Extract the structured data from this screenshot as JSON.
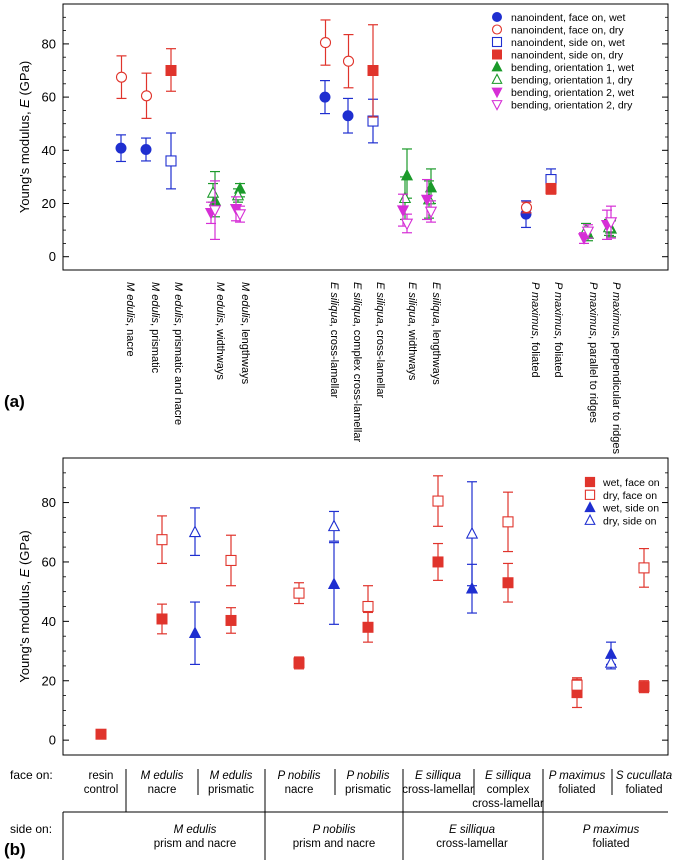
{
  "chart_data": [
    {
      "panel": "(a)",
      "type": "scatter",
      "ylabel": "Young's modulus, E (GPa)",
      "ylim": [
        -5,
        95
      ],
      "yticks": [
        0,
        20,
        40,
        60,
        80
      ],
      "grid": false,
      "legend_placement": "top-right",
      "categories": [
        {
          "genus": "M edulis",
          "rest": ", nacre"
        },
        {
          "genus": "M edulis",
          "rest": ", prismatic"
        },
        {
          "genus": "M edulis",
          "rest": ", prismatic and nacre"
        },
        {
          "genus": "M edulis",
          "rest": ", widthways"
        },
        {
          "genus": "M edulis",
          "rest": ", lengthways"
        },
        {
          "genus": "E siliqua",
          "rest": ", cross-lamellar"
        },
        {
          "genus": "E siliqua",
          "rest": ", complex cross-lamellar"
        },
        {
          "genus": "E siliqua",
          "rest": ", cross-lamellar"
        },
        {
          "genus": "E siliqua",
          "rest": ", widthways"
        },
        {
          "genus": "E siliqua",
          "rest": ", lengthways"
        },
        {
          "genus": "P maximus",
          "rest": ", foliated"
        },
        {
          "genus": "P maximus",
          "rest": ", foliated"
        },
        {
          "genus": "P maximus",
          "rest": ", parallel to ridges"
        },
        {
          "genus": "P maximus",
          "rest": ", perpendicular to ridges"
        }
      ],
      "series": [
        {
          "name": "nanoindent, face on, wet",
          "marker": "circle",
          "filled": true,
          "color": "#1f2fd0",
          "points": [
            {
              "cat": 0,
              "y": 40.8,
              "lo": 35.8,
              "hi": 45.8
            },
            {
              "cat": 1,
              "y": 40.3,
              "lo": 36.0,
              "hi": 44.6
            },
            {
              "cat": 5,
              "y": 60.0,
              "lo": 53.8,
              "hi": 66.2
            },
            {
              "cat": 6,
              "y": 53.0,
              "lo": 46.5,
              "hi": 59.5
            },
            {
              "cat": 10,
              "y": 16.0,
              "lo": 11.0,
              "hi": 21.0
            }
          ]
        },
        {
          "name": "nanoindent, face on, dry",
          "marker": "circle",
          "filled": false,
          "color": "#e0342c",
          "points": [
            {
              "cat": 0,
              "y": 67.5,
              "lo": 59.5,
              "hi": 75.5
            },
            {
              "cat": 1,
              "y": 60.5,
              "lo": 52.0,
              "hi": 69.0
            },
            {
              "cat": 5,
              "y": 80.5,
              "lo": 72.0,
              "hi": 89.0
            },
            {
              "cat": 6,
              "y": 73.5,
              "lo": 63.5,
              "hi": 83.5
            },
            {
              "cat": 10,
              "y": 18.5,
              "lo": 16.5,
              "hi": 20.5
            }
          ]
        },
        {
          "name": "nanoindent, side on, wet",
          "marker": "square",
          "filled": false,
          "color": "#1f2fd0",
          "points": [
            {
              "cat": 2,
              "y": 36.0,
              "lo": 25.5,
              "hi": 46.5
            },
            {
              "cat": 7,
              "y": 51.0,
              "lo": 42.8,
              "hi": 59.2
            },
            {
              "cat": 11,
              "y": 29.0,
              "lo": 25.5,
              "hi": 33.0
            }
          ]
        },
        {
          "name": "nanoindent, side on, dry",
          "marker": "square",
          "filled": true,
          "color": "#e0342c",
          "points": [
            {
              "cat": 2,
              "y": 70.0,
              "lo": 62.2,
              "hi": 78.2
            },
            {
              "cat": 7,
              "y": 70.0,
              "lo": 52.5,
              "hi": 87.2
            },
            {
              "cat": 11,
              "y": 25.5,
              "lo": 23.5,
              "hi": 27.5
            }
          ]
        },
        {
          "name": "bending, orientation 1, wet",
          "marker": "triangle-up",
          "filled": true,
          "color": "#1b9a2a",
          "points": [
            {
              "cat": 3,
              "y": 21.0,
              "lo": 15.0,
              "hi": 32.0
            },
            {
              "cat": 4,
              "y": 25.5,
              "lo": 22.5,
              "hi": 27.5
            },
            {
              "cat": 8,
              "y": 30.5,
              "lo": 22.0,
              "hi": 40.5
            },
            {
              "cat": 9,
              "y": 26.0,
              "lo": 20.0,
              "hi": 33.0
            },
            {
              "cat": 12,
              "y": 8.5,
              "lo": 6.0,
              "hi": 11.0
            },
            {
              "cat": 13,
              "y": 10.5,
              "lo": 7.5,
              "hi": 13.5
            }
          ]
        },
        {
          "name": "bending, orientation 1, dry",
          "marker": "triangle-up",
          "filled": false,
          "color": "#1b9a2a",
          "points": [
            {
              "cat": 3,
              "y": 24.0,
              "lo": 20.5,
              "hi": 27.5
            },
            {
              "cat": 4,
              "y": 23.0,
              "lo": 20.5,
              "hi": 25.5
            },
            {
              "cat": 8,
              "y": 22.0,
              "lo": 14.0,
              "hi": 30.0
            },
            {
              "cat": 9,
              "y": 21.5,
              "lo": 14.5,
              "hi": 28.5
            },
            {
              "cat": 12,
              "y": 10.0,
              "lo": 7.5,
              "hi": 12.5
            },
            {
              "cat": 13,
              "y": 11.0,
              "lo": 8.0,
              "hi": 14.0
            }
          ]
        },
        {
          "name": "bending, orientation 2, wet",
          "marker": "triangle-down",
          "filled": true,
          "color": "#d62fd6",
          "points": [
            {
              "cat": 3,
              "y": 16.5,
              "lo": 12.5,
              "hi": 20.5
            },
            {
              "cat": 4,
              "y": 18.0,
              "lo": 13.5,
              "hi": 22.5
            },
            {
              "cat": 8,
              "y": 17.5,
              "lo": 11.5,
              "hi": 23.5
            },
            {
              "cat": 9,
              "y": 21.5,
              "lo": 14.0,
              "hi": 29.0
            },
            {
              "cat": 12,
              "y": 7.0,
              "lo": 5.0,
              "hi": 9.0
            },
            {
              "cat": 13,
              "y": 12.0,
              "lo": 6.5,
              "hi": 17.5
            }
          ]
        },
        {
          "name": "bending, orientation 2, dry",
          "marker": "triangle-down",
          "filled": false,
          "color": "#d62fd6",
          "points": [
            {
              "cat": 3,
              "y": 17.5,
              "lo": 6.5,
              "hi": 28.5
            },
            {
              "cat": 4,
              "y": 16.0,
              "lo": 13.0,
              "hi": 19.0
            },
            {
              "cat": 8,
              "y": 12.5,
              "lo": 9.0,
              "hi": 16.0
            },
            {
              "cat": 9,
              "y": 17.0,
              "lo": 13.0,
              "hi": 21.0
            },
            {
              "cat": 12,
              "y": 9.5,
              "lo": 7.0,
              "hi": 12.0
            },
            {
              "cat": 13,
              "y": 13.0,
              "lo": 7.0,
              "hi": 19.0
            }
          ]
        }
      ]
    },
    {
      "panel": "(b)",
      "type": "scatter",
      "ylabel": "Young's modulus, E (GPa)",
      "ylim": [
        -5,
        95
      ],
      "yticks": [
        0,
        20,
        40,
        60,
        80
      ],
      "grid": false,
      "legend_placement": "top-right",
      "row_labels": {
        "face_on": "face on:",
        "side_on": "side on:"
      },
      "face_on_categories": [
        {
          "top": "resin",
          "bottom": "control",
          "italic_top": false
        },
        {
          "top": "M edulis",
          "bottom": "nacre",
          "italic_top": true
        },
        {
          "top": "M edulis",
          "bottom": "prismatic",
          "italic_top": true
        },
        {
          "top": "P nobilis",
          "bottom": "nacre",
          "italic_top": true
        },
        {
          "top": "P nobilis",
          "bottom": "prismatic",
          "italic_top": true
        },
        {
          "top": "E silliqua",
          "bottom": "cross-lamellar",
          "italic_top": true
        },
        {
          "top": "E silliqua",
          "bottom": "complex",
          "extra": "cross-lamellar",
          "italic_top": true
        },
        {
          "top": "P maximus",
          "bottom": "foliated",
          "italic_top": true
        },
        {
          "top": "S cucullata",
          "bottom": "foliated",
          "italic_top": true
        }
      ],
      "side_on_categories": [
        {
          "top": "M edulis",
          "bottom": "prism and nacre"
        },
        {
          "top": "P nobilis",
          "bottom": "prism and nacre"
        },
        {
          "top": "E silliqua",
          "bottom": "cross-lamellar"
        },
        {
          "top": "P maximus",
          "bottom": "foliated"
        }
      ],
      "series": [
        {
          "name": "wet, face on",
          "marker": "square",
          "filled": true,
          "color": "#e0342c",
          "points": [
            {
              "slot": "f0",
              "y": 2.0,
              "lo": 2.0,
              "hi": 2.0
            },
            {
              "slot": "f1",
              "y": 40.8,
              "lo": 35.8,
              "hi": 45.8
            },
            {
              "slot": "f2",
              "y": 40.3,
              "lo": 36.0,
              "hi": 44.6
            },
            {
              "slot": "f3",
              "y": 26.0,
              "lo": 24.0,
              "hi": 28.0
            },
            {
              "slot": "f4",
              "y": 38.0,
              "lo": 33.0,
              "hi": 43.0
            },
            {
              "slot": "f5",
              "y": 60.0,
              "lo": 53.8,
              "hi": 66.2
            },
            {
              "slot": "f6",
              "y": 53.0,
              "lo": 46.5,
              "hi": 59.5
            },
            {
              "slot": "f7",
              "y": 16.0,
              "lo": 11.0,
              "hi": 21.0
            },
            {
              "slot": "f8",
              "y": 18.0,
              "lo": 16.0,
              "hi": 20.0
            }
          ]
        },
        {
          "name": "dry, face on",
          "marker": "square",
          "filled": false,
          "color": "#e0342c",
          "points": [
            {
              "slot": "f1",
              "y": 67.5,
              "lo": 59.5,
              "hi": 75.5
            },
            {
              "slot": "f2",
              "y": 60.5,
              "lo": 52.0,
              "hi": 69.0
            },
            {
              "slot": "f3",
              "y": 49.5,
              "lo": 46.0,
              "hi": 53.0
            },
            {
              "slot": "f4",
              "y": 45.0,
              "lo": 38.0,
              "hi": 52.0
            },
            {
              "slot": "f5",
              "y": 80.5,
              "lo": 72.0,
              "hi": 89.0
            },
            {
              "slot": "f6",
              "y": 73.5,
              "lo": 63.5,
              "hi": 83.5
            },
            {
              "slot": "f7",
              "y": 18.5,
              "lo": 16.5,
              "hi": 20.5
            },
            {
              "slot": "f8",
              "y": 58.0,
              "lo": 51.5,
              "hi": 64.5
            }
          ]
        },
        {
          "name": "wet, side on",
          "marker": "triangle-up",
          "filled": true,
          "color": "#1f2fd0",
          "points": [
            {
              "slot": "s0",
              "y": 36.0,
              "lo": 25.5,
              "hi": 46.5
            },
            {
              "slot": "s1",
              "y": 52.5,
              "lo": 39.0,
              "hi": 66.5
            },
            {
              "slot": "s2",
              "y": 51.0,
              "lo": 42.8,
              "hi": 59.2
            },
            {
              "slot": "s3",
              "y": 29.0,
              "lo": 25.5,
              "hi": 33.0
            }
          ]
        },
        {
          "name": "dry, side on",
          "marker": "triangle-up",
          "filled": false,
          "color": "#1f2fd0",
          "points": [
            {
              "slot": "s0",
              "y": 70.0,
              "lo": 62.2,
              "hi": 78.2
            },
            {
              "slot": "s1",
              "y": 72.0,
              "lo": 67.0,
              "hi": 77.0
            },
            {
              "slot": "s2",
              "y": 69.5,
              "lo": 52.0,
              "hi": 87.0
            },
            {
              "slot": "s3",
              "y": 26.0,
              "lo": 24.0,
              "hi": 28.0
            }
          ]
        }
      ]
    }
  ]
}
